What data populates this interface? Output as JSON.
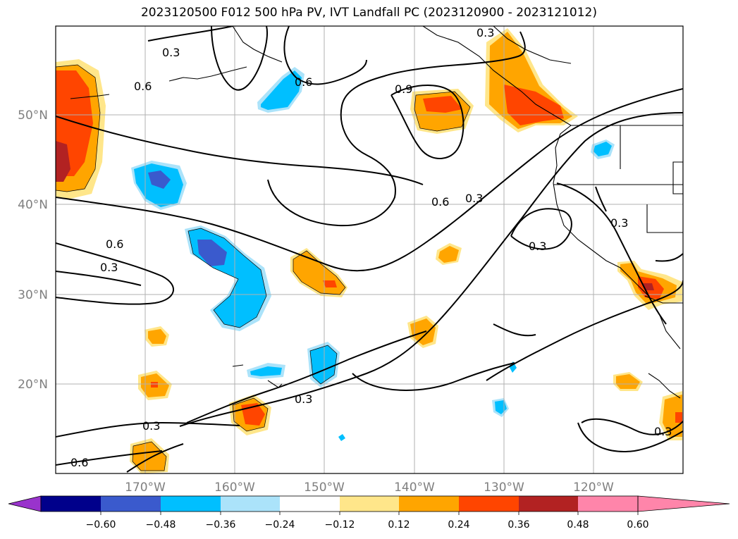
{
  "title": "2023120500 F012 500 hPa PV, IVT Landfall PC (2023120900 - 2023121012)",
  "map": {
    "lon_labels": [
      "170°W",
      "160°W",
      "150°W",
      "140°W",
      "130°W",
      "120°W"
    ],
    "lat_labels": [
      "50°N",
      "40°N",
      "30°N",
      "20°N"
    ],
    "contour_labels": [
      "0.3",
      "0.6",
      "0.6",
      "0.9",
      "0.3",
      "0.6",
      "0.3",
      "0.6",
      "0.3",
      "0.3",
      "0.3",
      "0.3",
      "0.3",
      "0.6",
      "0.3"
    ]
  },
  "colorbar": {
    "colors": [
      "#9933cc",
      "#00008b",
      "#3a5acd",
      "#00bfff",
      "#abe3fa",
      "#ffffff",
      "#ffe68a",
      "#ffa500",
      "#ff4500",
      "#b22222",
      "#ff85aa"
    ],
    "ticks": [
      "−0.60",
      "−0.48",
      "−0.36",
      "−0.24",
      "−0.12",
      "0.12",
      "0.24",
      "0.36",
      "0.48",
      "0.60"
    ]
  }
}
